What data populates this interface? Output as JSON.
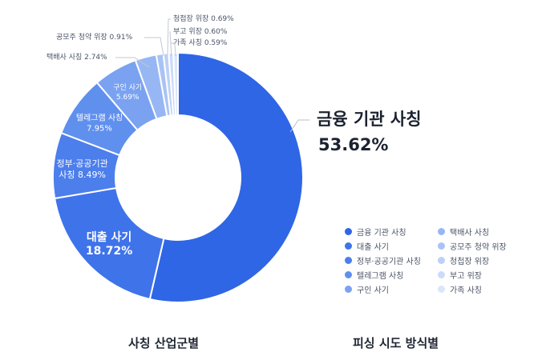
{
  "chart_data": {
    "type": "pie",
    "categories": [
      "금융 기관 사칭",
      "대출 사기",
      "정부·공공기관 사칭",
      "텔레그램 사칭",
      "구인 사기",
      "택배사 사칭",
      "공모주 청약 위장",
      "청첩장 위장",
      "부고 위장",
      "가족 사칭"
    ],
    "values": [
      53.62,
      18.72,
      8.49,
      7.95,
      5.69,
      2.74,
      0.91,
      0.69,
      0.6,
      0.59
    ],
    "colors": [
      "#2f66e6",
      "#3f73ea",
      "#4c7eec",
      "#6090ee",
      "#7aa2f1",
      "#97b7f4",
      "#a9c3f5",
      "#bcd0f7",
      "#ccdbf9",
      "#dbe6fb"
    ],
    "data_labels": {
      "big": [
        "금융 기관 사칭",
        "53.62%"
      ],
      "inside": [
        [
          "대출 사기",
          "18.72%"
        ],
        [
          "정부·공공기관",
          "사칭 8.49%"
        ],
        [
          "텔레그램 사칭",
          "7.95%"
        ],
        [
          "구인 사기",
          "5.69%"
        ]
      ],
      "outside": [
        "택배사 사칭 2.74%",
        "공모주 청약 위장 0.91%",
        "청첩장 위장 0.69%",
        "부고 위장 0.60%",
        "가족 사칭 0.59%"
      ]
    },
    "legend": [
      "금융 기관 사칭",
      "대출 사기",
      "정부·공공기관 사칭",
      "텔레그램 사칭",
      "구인 사기",
      "택배사 사칭",
      "공모주 청약 위장",
      "청첩장 위장",
      "부고 위장",
      "가족 사칭"
    ],
    "legend_position": "bottom-right",
    "donut": true
  },
  "captions": {
    "left": "사칭 산업군별",
    "right": "피싱 시도 방식별"
  }
}
